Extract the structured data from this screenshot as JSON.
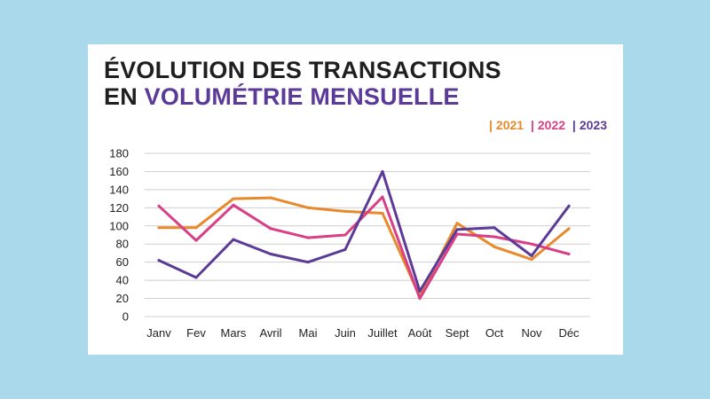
{
  "title": {
    "line1": "ÉVOLUTION DES TRANSACTIONS",
    "line2_prefix": "EN ",
    "line2_accent": "VOLUMÉTRIE MENSUELLE"
  },
  "legend": {
    "separator": "|",
    "items": [
      {
        "label": "2021",
        "color": "#e8892b"
      },
      {
        "label": "2022",
        "color": "#d83f86"
      },
      {
        "label": "2023",
        "color": "#5b3a98"
      }
    ]
  },
  "chart_data": {
    "type": "line",
    "title": "ÉVOLUTION DES TRANSACTIONS EN VOLUMÉTRIE MENSUELLE",
    "xlabel": "",
    "ylabel": "",
    "categories": [
      "Janv",
      "Fev",
      "Mars",
      "Avril",
      "Mai",
      "Juin",
      "Juillet",
      "Août",
      "Sept",
      "Oct",
      "Nov",
      "Déc"
    ],
    "yticks": [
      "0",
      "20",
      "40",
      "60",
      "80",
      "100",
      "120",
      "140",
      "160",
      "180"
    ],
    "ylim": [
      0,
      180
    ],
    "grid": true,
    "legend_position": "top-right",
    "series": [
      {
        "name": "2021",
        "color": "#e8892b",
        "values": [
          98,
          98,
          130,
          131,
          120,
          116,
          114,
          22,
          103,
          77,
          63,
          97
        ]
      },
      {
        "name": "2022",
        "color": "#d83f86",
        "values": [
          122,
          84,
          123,
          97,
          87,
          90,
          132,
          20,
          91,
          88,
          80,
          69
        ]
      },
      {
        "name": "2023",
        "color": "#5b3a98",
        "values": [
          62,
          43,
          85,
          69,
          60,
          74,
          160,
          28,
          96,
          98,
          67,
          122
        ]
      }
    ]
  }
}
